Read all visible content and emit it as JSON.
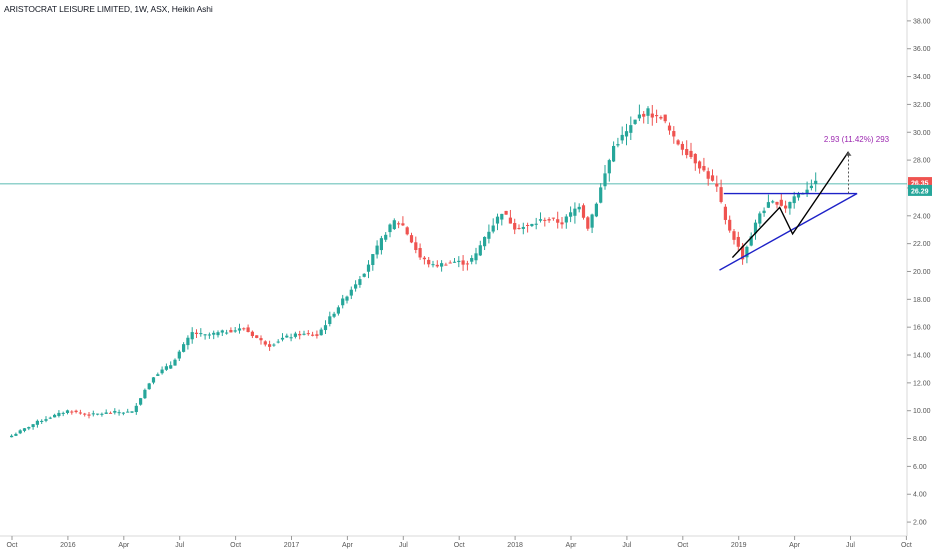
{
  "chart_title": "ARISTOCRAT LEISURE LIMITED, 1W, ASX, Heikin Ashi",
  "chart_data": {
    "type": "candlestick",
    "title": "ARISTOCRAT LEISURE LIMITED, 1W, ASX, Heikin Ashi",
    "symbol": "ARISTOCRAT LEISURE LIMITED",
    "interval": "1W",
    "exchange": "ASX",
    "candle_style": "Heikin Ashi",
    "ylim": [
      1.0,
      39.5
    ],
    "y_ticks": [
      "2.00",
      "4.00",
      "6.00",
      "8.00",
      "10.00",
      "12.00",
      "14.00",
      "16.00",
      "18.00",
      "20.00",
      "22.00",
      "24.00",
      "26.00",
      "28.00",
      "30.00",
      "32.00",
      "34.00",
      "36.00",
      "38.00"
    ],
    "x_ticks": [
      "Oct",
      "2016",
      "Apr",
      "Jul",
      "Oct",
      "2017",
      "Apr",
      "Jul",
      "Oct",
      "2018",
      "Apr",
      "Jul",
      "Oct",
      "2019",
      "Apr",
      "Jul",
      "Oct"
    ],
    "x_tick_weeks": [
      0,
      13,
      26,
      39,
      52,
      65,
      78,
      91,
      104,
      117,
      130,
      143,
      156,
      169,
      182,
      195,
      208
    ],
    "price_anchors": [
      [
        0,
        8.2
      ],
      [
        6,
        9.2
      ],
      [
        13,
        10.0
      ],
      [
        18,
        9.7
      ],
      [
        24,
        9.9
      ],
      [
        28,
        9.9
      ],
      [
        31,
        11.5
      ],
      [
        33,
        12.5
      ],
      [
        37,
        13.3
      ],
      [
        42,
        15.6
      ],
      [
        45,
        15.4
      ],
      [
        50,
        15.7
      ],
      [
        54,
        15.9
      ],
      [
        58,
        15.0
      ],
      [
        60,
        14.7
      ],
      [
        63,
        15.2
      ],
      [
        67,
        15.5
      ],
      [
        71,
        15.4
      ],
      [
        76,
        17.5
      ],
      [
        82,
        20.0
      ],
      [
        87,
        22.8
      ],
      [
        89,
        23.6
      ],
      [
        91,
        23.3
      ],
      [
        95,
        21.0
      ],
      [
        98,
        20.4
      ],
      [
        103,
        20.7
      ],
      [
        106,
        20.6
      ],
      [
        108,
        21.2
      ],
      [
        110,
        22.5
      ],
      [
        114,
        24.3
      ],
      [
        117,
        23.2
      ],
      [
        120,
        23.2
      ],
      [
        124,
        23.8
      ],
      [
        128,
        23.5
      ],
      [
        132,
        24.8
      ],
      [
        134,
        23.2
      ],
      [
        136,
        25.0
      ],
      [
        140,
        29.0
      ],
      [
        143,
        30.0
      ],
      [
        146,
        31.2
      ],
      [
        148,
        31.5
      ],
      [
        150,
        31.0
      ],
      [
        151,
        31.2
      ],
      [
        154,
        29.5
      ],
      [
        157,
        28.6
      ],
      [
        160,
        27.6
      ],
      [
        162,
        26.8
      ],
      [
        164,
        26.0
      ],
      [
        166,
        23.6
      ],
      [
        168,
        22.4
      ],
      [
        170,
        21.0
      ],
      [
        172,
        22.6
      ],
      [
        174,
        24.2
      ],
      [
        176,
        24.8
      ],
      [
        178,
        25.0
      ],
      [
        180,
        24.6
      ],
      [
        182,
        25.4
      ],
      [
        184,
        25.7
      ],
      [
        186,
        26.3
      ],
      [
        187,
        26.3
      ]
    ],
    "last_price": "26.35",
    "last_price_color": "#ef5350",
    "horizontal_line_price": "26.29",
    "horizontal_line_color": "#26a69a",
    "up_color": "#26a69a",
    "down_color": "#ef5350",
    "drawings": {
      "resistance_line": {
        "color": "#1e22c8",
        "points": [
          [
            166,
            25.6
          ],
          [
            197,
            25.6
          ]
        ]
      },
      "support_line": {
        "color": "#1e22c8",
        "points": [
          [
            165,
            20.1
          ],
          [
            197,
            25.6
          ]
        ]
      },
      "zigzag": {
        "color": "#000000",
        "points": [
          [
            168,
            21.0
          ],
          [
            179,
            24.6
          ],
          [
            182,
            22.7
          ],
          [
            195,
            28.6
          ]
        ]
      },
      "measure": {
        "color": "#9c27b0",
        "from": [
          195,
          25.6
        ],
        "to": [
          195,
          28.6
        ],
        "label": "2.93 (11.42%) 293"
      }
    }
  }
}
